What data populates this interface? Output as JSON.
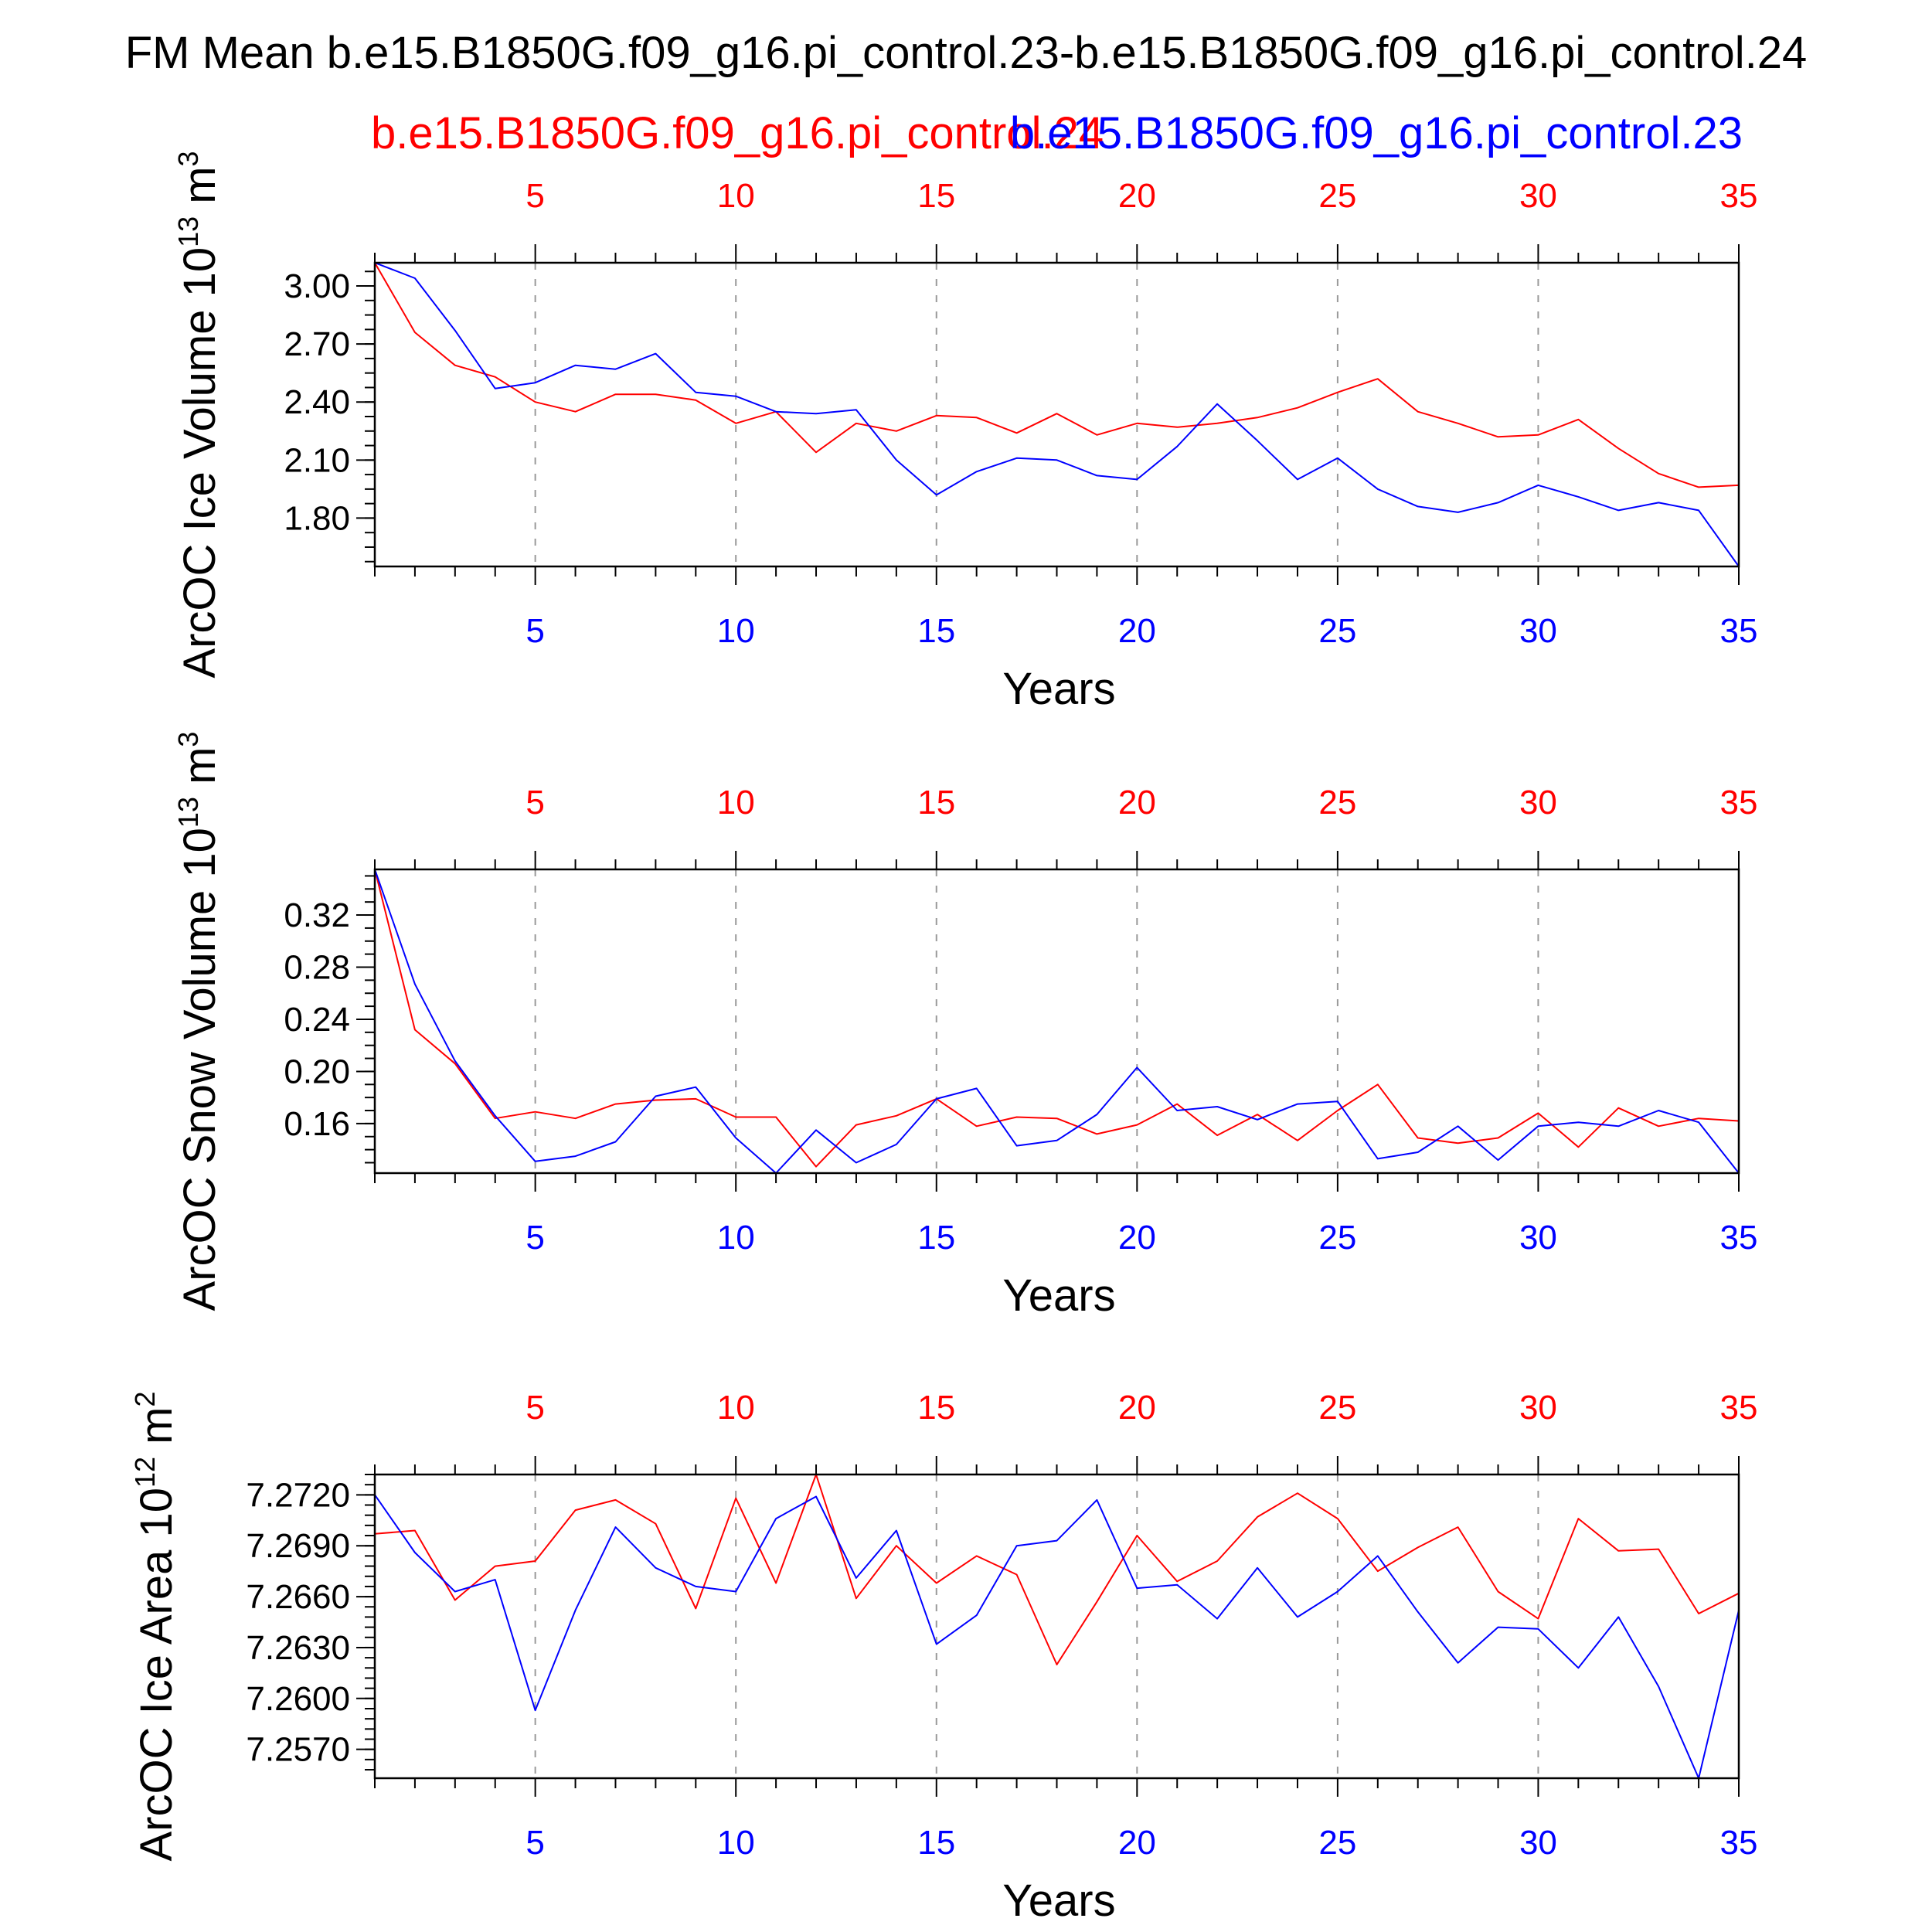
{
  "title": "FM Mean b.e15.B1850G.f09_g16.pi_control.23-b.e15.B1850G.f09_g16.pi_control.24",
  "legend": {
    "red_label": "b.e15.B1850G.f09_g16.pi_control.24",
    "blue_label": "b.e15.B1850G.f09_g16.pi_control.23"
  },
  "colors": {
    "red": "#ff0000",
    "blue": "#0000ff",
    "axis": "#000000",
    "grid": "#999999"
  },
  "chart_data": [
    {
      "type": "line",
      "title": "",
      "xlabel": "Years",
      "ylabel": "ArcOC Ice Volume 10",
      "ylabel_exp": "13",
      "ylabel_unit": " m",
      "ylabel_unit_exp": "3",
      "xlim": [
        1,
        35
      ],
      "ylim": [
        1.55,
        3.12
      ],
      "yticks": [
        1.8,
        2.1,
        2.4,
        2.7,
        3.0
      ],
      "ytick_labels": [
        "1.80",
        "2.10",
        "2.40",
        "2.70",
        "3.00"
      ],
      "yminor_step": 0.075,
      "xticks": [
        5,
        10,
        15,
        20,
        25,
        30,
        35
      ],
      "xtick_labels": [
        "5",
        "10",
        "15",
        "20",
        "25",
        "30",
        "35"
      ],
      "grid": "vertical-dashed-at-major-x",
      "x": [
        1,
        2,
        3,
        4,
        5,
        6,
        7,
        8,
        9,
        10,
        11,
        12,
        13,
        14,
        15,
        16,
        17,
        18,
        19,
        20,
        21,
        22,
        23,
        24,
        25,
        26,
        27,
        28,
        29,
        30,
        31,
        32,
        33,
        34,
        35
      ],
      "series": [
        {
          "name": "b.e15.B1850G.f09_g16.pi_control.24",
          "color": "red",
          "values": [
            3.12,
            2.76,
            2.59,
            2.53,
            2.4,
            2.35,
            2.44,
            2.44,
            2.41,
            2.29,
            2.35,
            2.14,
            2.29,
            2.25,
            2.33,
            2.32,
            2.24,
            2.34,
            2.23,
            2.29,
            2.27,
            2.29,
            2.32,
            2.37,
            2.45,
            2.52,
            2.35,
            2.29,
            2.22,
            2.23,
            2.31,
            2.16,
            2.03,
            1.96,
            1.97
          ]
        },
        {
          "name": "b.e15.B1850G.f09_g16.pi_control.23",
          "color": "blue",
          "values": [
            3.12,
            3.04,
            2.77,
            2.47,
            2.5,
            2.59,
            2.57,
            2.65,
            2.45,
            2.43,
            2.35,
            2.34,
            2.36,
            2.1,
            1.92,
            2.04,
            2.11,
            2.1,
            2.02,
            2.0,
            2.17,
            2.39,
            2.2,
            2.0,
            2.11,
            1.95,
            1.86,
            1.83,
            1.88,
            1.97,
            1.91,
            1.84,
            1.88,
            1.84,
            1.55
          ]
        }
      ]
    },
    {
      "type": "line",
      "title": "",
      "xlabel": "Years",
      "ylabel": "ArcOC Snow Volume 10",
      "ylabel_exp": "13",
      "ylabel_unit": " m",
      "ylabel_unit_exp": "3",
      "xlim": [
        1,
        35
      ],
      "ylim": [
        0.122,
        0.355
      ],
      "yticks": [
        0.16,
        0.2,
        0.24,
        0.28,
        0.32
      ],
      "ytick_labels": [
        "0.16",
        "0.20",
        "0.24",
        "0.28",
        "0.32"
      ],
      "yminor_step": 0.01,
      "xticks": [
        5,
        10,
        15,
        20,
        25,
        30,
        35
      ],
      "xtick_labels": [
        "5",
        "10",
        "15",
        "20",
        "25",
        "30",
        "35"
      ],
      "grid": "vertical-dashed-at-major-x",
      "x": [
        1,
        2,
        3,
        4,
        5,
        6,
        7,
        8,
        9,
        10,
        11,
        12,
        13,
        14,
        15,
        16,
        17,
        18,
        19,
        20,
        21,
        22,
        23,
        24,
        25,
        26,
        27,
        28,
        29,
        30,
        31,
        32,
        33,
        34,
        35
      ],
      "series": [
        {
          "name": "b.e15.B1850G.f09_g16.pi_control.24",
          "color": "red",
          "values": [
            0.355,
            0.232,
            0.206,
            0.164,
            0.169,
            0.164,
            0.175,
            0.178,
            0.179,
            0.165,
            0.165,
            0.127,
            0.159,
            0.166,
            0.179,
            0.158,
            0.165,
            0.164,
            0.152,
            0.159,
            0.175,
            0.151,
            0.167,
            0.147,
            0.17,
            0.19,
            0.149,
            0.145,
            0.149,
            0.168,
            0.142,
            0.172,
            0.158,
            0.164,
            0.162
          ]
        },
        {
          "name": "b.e15.B1850G.f09_g16.pi_control.23",
          "color": "blue",
          "values": [
            0.355,
            0.267,
            0.208,
            0.166,
            0.131,
            0.135,
            0.146,
            0.181,
            0.188,
            0.149,
            0.122,
            0.155,
            0.13,
            0.144,
            0.179,
            0.187,
            0.143,
            0.147,
            0.167,
            0.203,
            0.17,
            0.173,
            0.163,
            0.175,
            0.177,
            0.133,
            0.138,
            0.158,
            0.132,
            0.158,
            0.161,
            0.158,
            0.17,
            0.161,
            0.122
          ]
        }
      ]
    },
    {
      "type": "line",
      "title": "",
      "xlabel": "Years",
      "ylabel": "ArcOC Ice Area 10",
      "ylabel_exp": "12",
      "ylabel_unit": " m",
      "ylabel_unit_exp": "2",
      "xlim": [
        1,
        35
      ],
      "ylim": [
        7.2553,
        7.2732
      ],
      "yticks": [
        7.257,
        7.26,
        7.263,
        7.266,
        7.269,
        7.272
      ],
      "ytick_labels": [
        "7.2570",
        "7.2600",
        "7.2630",
        "7.2660",
        "7.2690",
        "7.2720"
      ],
      "yminor_step": 0.0006,
      "xticks": [
        5,
        10,
        15,
        20,
        25,
        30,
        35
      ],
      "xtick_labels": [
        "5",
        "10",
        "15",
        "20",
        "25",
        "30",
        "35"
      ],
      "grid": "vertical-dashed-at-major-x",
      "x": [
        1,
        2,
        3,
        4,
        5,
        6,
        7,
        8,
        9,
        10,
        11,
        12,
        13,
        14,
        15,
        16,
        17,
        18,
        19,
        20,
        21,
        22,
        23,
        24,
        25,
        26,
        27,
        28,
        29,
        30,
        31,
        32,
        33,
        34,
        35
      ],
      "series": [
        {
          "name": "b.e15.B1850G.f09_g16.pi_control.24",
          "color": "red",
          "values": [
            7.2697,
            7.2699,
            7.2658,
            7.2678,
            7.2681,
            7.2711,
            7.2717,
            7.2703,
            7.2653,
            7.2718,
            7.2668,
            7.2732,
            7.2659,
            7.269,
            7.2668,
            7.2684,
            7.2673,
            7.262,
            7.2657,
            7.2696,
            7.2669,
            7.2681,
            7.2707,
            7.2721,
            7.2706,
            7.2675,
            7.2689,
            7.2701,
            7.2663,
            7.2647,
            7.2706,
            7.2687,
            7.2688,
            7.265,
            7.2662
          ]
        },
        {
          "name": "b.e15.B1850G.f09_g16.pi_control.23",
          "color": "blue",
          "values": [
            7.272,
            7.2686,
            7.2663,
            7.267,
            7.2593,
            7.2652,
            7.2701,
            7.2677,
            7.2666,
            7.2663,
            7.2706,
            7.2719,
            7.2671,
            7.2699,
            7.2632,
            7.2649,
            7.269,
            7.2693,
            7.2717,
            7.2665,
            7.2667,
            7.2647,
            7.2677,
            7.2648,
            7.2663,
            7.2684,
            7.2651,
            7.2621,
            7.2642,
            7.2641,
            7.2618,
            7.2648,
            7.2607,
            7.2553,
            7.2652
          ]
        }
      ]
    }
  ]
}
